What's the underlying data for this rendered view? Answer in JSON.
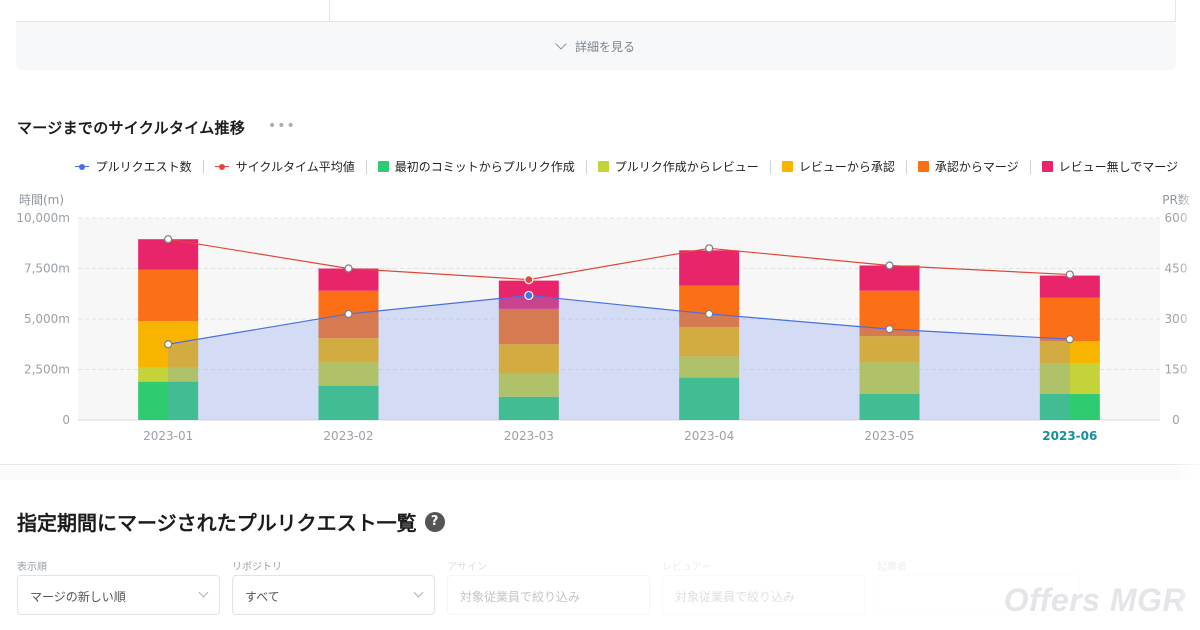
{
  "top_card": {
    "details_label": "詳細を見る"
  },
  "chart_section": {
    "title": "マージまでのサイクルタイム推移",
    "more": "•••"
  },
  "legend": [
    {
      "label": "プルリクエスト数",
      "kind": "line",
      "color": "#4a6fe0"
    },
    {
      "label": "サイクルタイム平均値",
      "kind": "line",
      "color": "#e0483a"
    },
    {
      "label": "最初のコミットからプルリク作成",
      "kind": "bar",
      "color": "#2ecb71"
    },
    {
      "label": "プルリク作成からレビュー",
      "kind": "bar",
      "color": "#c5d33a"
    },
    {
      "label": "レビューから承認",
      "kind": "bar",
      "color": "#f7b500"
    },
    {
      "label": "承認からマージ",
      "kind": "bar",
      "color": "#fb6f17"
    },
    {
      "label": "レビュー無しでマージ",
      "kind": "bar",
      "color": "#e8256b"
    }
  ],
  "chart_data": {
    "type": "bar",
    "ylabel": "時間(m)",
    "y2label": "PR数",
    "ylim": [
      0,
      10000
    ],
    "y2lim": [
      0,
      600
    ],
    "yticks": [
      "0",
      "2,500m",
      "5,000m",
      "7,500m",
      "10,000m"
    ],
    "y2ticks": [
      "0",
      "150",
      "300",
      "450",
      "600"
    ],
    "categories": [
      "2023-01",
      "2023-02",
      "2023-03",
      "2023-04",
      "2023-05",
      "2023-06"
    ],
    "highlighted_category": "2023-06",
    "series": [
      {
        "name": "最初のコミットからプルリク作成",
        "color": "#2ecb71",
        "values": [
          1900,
          1700,
          1150,
          2100,
          1300,
          1300
        ]
      },
      {
        "name": "プルリク作成からレビュー",
        "color": "#c5d33a",
        "values": [
          700,
          1150,
          1150,
          1050,
          1550,
          1500
        ]
      },
      {
        "name": "レビューから承認",
        "color": "#f7b500",
        "values": [
          2300,
          1200,
          1450,
          1450,
          1300,
          1100
        ]
      },
      {
        "name": "承認からマージ",
        "color": "#fb6f17",
        "values": [
          2550,
          2350,
          1750,
          2050,
          2250,
          2150
        ]
      },
      {
        "name": "レビュー無しでマージ",
        "color": "#e8256b",
        "values": [
          1500,
          1100,
          1400,
          1750,
          1250,
          1100
        ]
      }
    ],
    "lines": [
      {
        "name": "プルリクエスト数",
        "axis": "right",
        "color": "#4a6fe0",
        "values": [
          225,
          315,
          370,
          315,
          270,
          240
        ]
      },
      {
        "name": "サイクルタイム平均値",
        "axis": "left",
        "color": "#e0483a",
        "values": [
          8950,
          7500,
          6950,
          8500,
          7650,
          7200
        ]
      }
    ],
    "highlight_point": {
      "category": "2023-03"
    },
    "grid": true
  },
  "list_section": {
    "title": "指定期間にマージされたプルリクエスト一覧",
    "help": "?"
  },
  "filters": [
    {
      "label": "表示順",
      "value": "マージの新しい順"
    },
    {
      "label": "リポジトリ",
      "value": "すべて"
    },
    {
      "label": "アサイン",
      "value": "対象従業員で絞り込み"
    },
    {
      "label": "レビュアー",
      "value": "対象従業員で絞り込み"
    },
    {
      "label": "起票者",
      "value": ""
    }
  ],
  "watermark": "Offers MGR"
}
